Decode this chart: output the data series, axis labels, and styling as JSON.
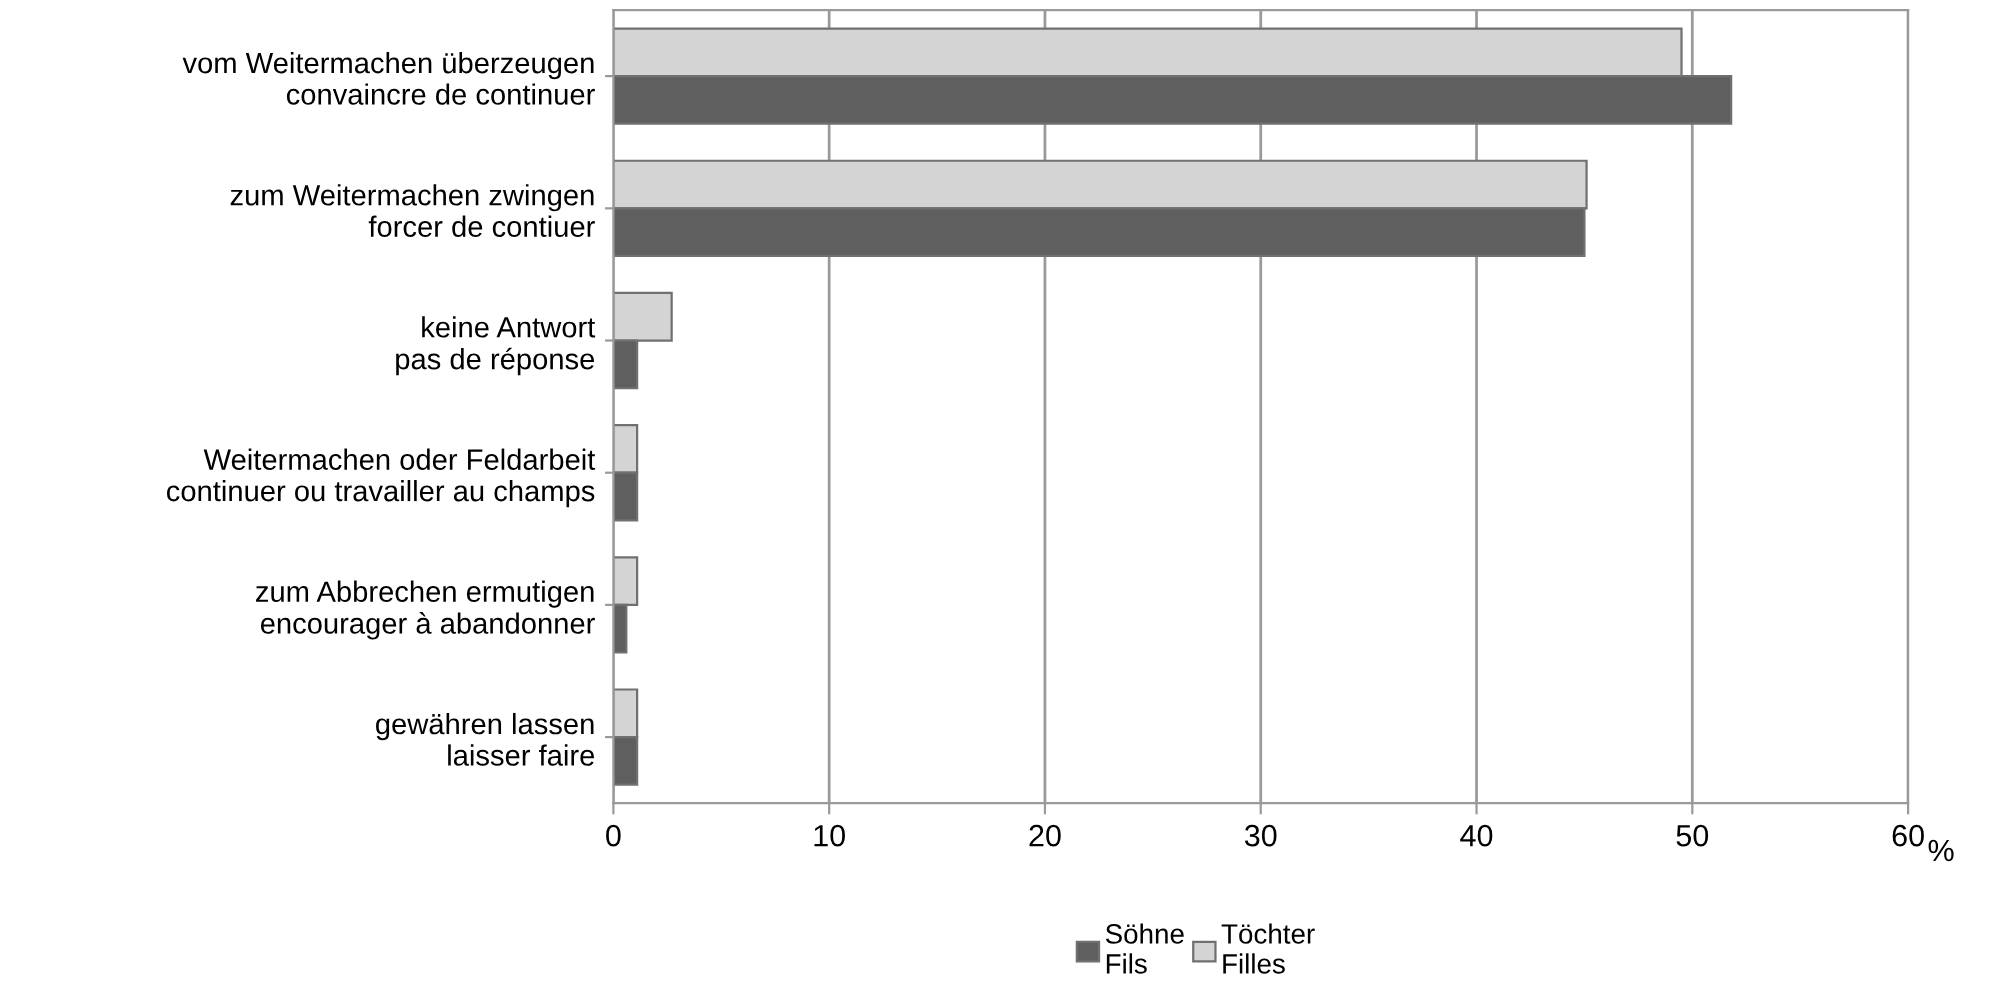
{
  "chart_data": {
    "type": "bar",
    "orientation": "horizontal",
    "categories": [
      "vom Weitermachen überzeugen\nconvaincre de continuer",
      "zum Weitermachen zwingen\nforcer de contiuer",
      "keine Antwort\npas de réponse",
      "Weitermachen oder Feldarbeit\ncontinuer ou travailler au champs",
      "zum Abbrechen ermutigen\nencourager à abandonner",
      "gewähren lassen\nlaisser faire"
    ],
    "series": [
      {
        "name": "Töchter\nFilles",
        "color": "#d4d4d4",
        "values": [
          49.5,
          45.1,
          2.7,
          1.1,
          1.1,
          1.1
        ]
      },
      {
        "name": "Söhne\nFils",
        "color": "#5f5f5f",
        "values": [
          51.8,
          45.0,
          1.1,
          1.1,
          0.6,
          1.1
        ]
      }
    ],
    "xlabel": "%",
    "xlim": [
      0,
      60
    ],
    "xticks": [
      0,
      10,
      20,
      30,
      40,
      50,
      60
    ],
    "grid": "x",
    "legend": "bottom"
  }
}
